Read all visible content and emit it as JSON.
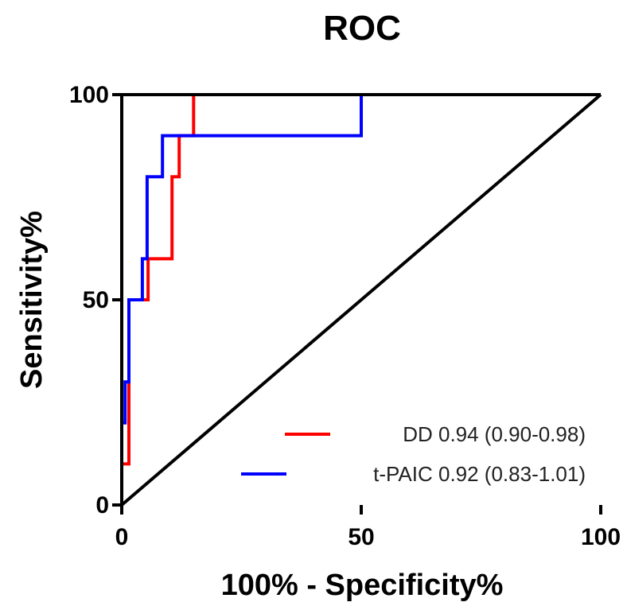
{
  "chart_data": {
    "type": "line",
    "title": "ROC",
    "xlabel": "100% - Specificity%",
    "ylabel": "Sensitivity%",
    "xlim": [
      0,
      100
    ],
    "ylim": [
      0,
      100
    ],
    "x_ticks": [
      0,
      50,
      100
    ],
    "y_ticks": [
      0,
      50,
      100
    ],
    "grid": false,
    "legend_position": "bottom-right",
    "series": [
      {
        "name": "DD 0.94 (0.90-0.98)",
        "color": "#ff0000",
        "x": [
          0,
          0,
          1.5,
          1.5,
          5.5,
          5.5,
          10.5,
          10.5,
          12,
          12,
          15,
          15,
          100
        ],
        "y": [
          0,
          10,
          10,
          50,
          50,
          60,
          60,
          80,
          80,
          90,
          90,
          100,
          100
        ]
      },
      {
        "name": "t-PAIC 0.92 (0.83-1.01)",
        "color": "#0000ff",
        "x": [
          0,
          0,
          0.7,
          0.7,
          1.5,
          1.5,
          4.3,
          4.3,
          5.3,
          5.3,
          8.5,
          8.5,
          50,
          50,
          100
        ],
        "y": [
          0,
          20,
          20,
          30,
          30,
          50,
          50,
          60,
          60,
          80,
          80,
          90,
          90,
          100,
          100
        ]
      },
      {
        "name": "",
        "color": "#000000",
        "x": [
          0,
          100
        ],
        "y": [
          0,
          100
        ]
      }
    ]
  }
}
